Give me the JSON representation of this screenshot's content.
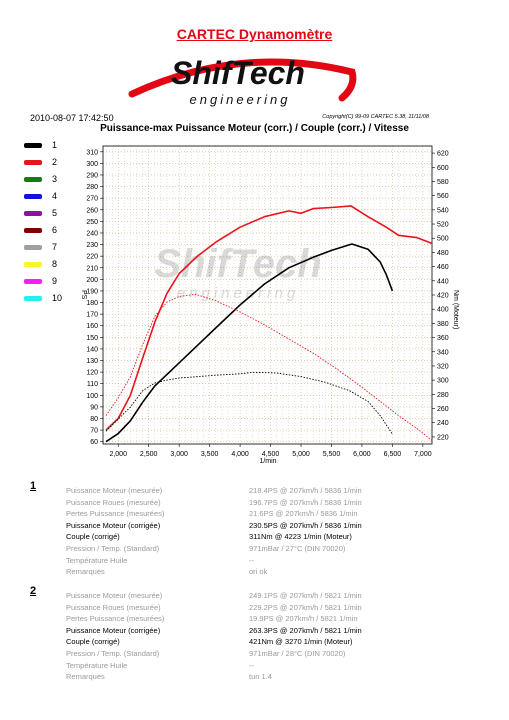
{
  "header": {
    "title": "CARTEC Dynamomètre",
    "logo_top": "ShifTech",
    "logo_bottom": "engineering",
    "datetime": "2010-08-07 17:42:50",
    "copyright": "Copyright(C) 99-09 CARTEC 5.38, 11/11/08"
  },
  "legend": {
    "items": [
      {
        "num": "1",
        "color": "#000000"
      },
      {
        "num": "2",
        "color": "#e8141c"
      },
      {
        "num": "3",
        "color": "#108010"
      },
      {
        "num": "4",
        "color": "#1010e0"
      },
      {
        "num": "5",
        "color": "#9010a0"
      },
      {
        "num": "6",
        "color": "#800000"
      },
      {
        "num": "7",
        "color": "#a0a0a0"
      },
      {
        "num": "8",
        "color": "#f8f820"
      },
      {
        "num": "9",
        "color": "#f020f0"
      },
      {
        "num": "10",
        "color": "#20f0f0"
      }
    ]
  },
  "chart_data": {
    "type": "line",
    "title": "Puissance-max Puissance Moteur (corr.) / Couple (corr.) / Vitesse",
    "xlabel": "1/min",
    "ylabel": "PS",
    "y2label": "Nm (Moteur)",
    "xlim": [
      1750,
      7150
    ],
    "ylim": [
      58,
      315
    ],
    "y2lim": [
      210,
      630
    ],
    "x_ticks": [
      2000,
      2500,
      3000,
      3500,
      4000,
      4500,
      5000,
      5500,
      6000,
      6500,
      7000
    ],
    "x_tick_labels": [
      "2,000",
      "2,500",
      "3,000",
      "3,500",
      "4,000",
      "4,500",
      "5,000",
      "5,500",
      "6,000",
      "6,500",
      "7,000"
    ],
    "y_ticks": [
      60,
      70,
      80,
      90,
      100,
      110,
      120,
      130,
      140,
      150,
      160,
      170,
      180,
      190,
      200,
      210,
      220,
      230,
      240,
      250,
      260,
      270,
      280,
      290,
      300,
      310
    ],
    "y2_ticks": [
      220,
      240,
      260,
      280,
      300,
      320,
      340,
      360,
      380,
      400,
      420,
      440,
      460,
      480,
      500,
      520,
      540,
      560,
      580,
      600,
      620
    ],
    "grid": true,
    "series": [
      {
        "name": "1",
        "kind": "power",
        "axis": "left",
        "color": "#000000",
        "x": [
          1800,
          2000,
          2200,
          2400,
          2600,
          2800,
          3000,
          3300,
          3600,
          4000,
          4400,
          4800,
          5200,
          5500,
          5836,
          6100,
          6300,
          6400,
          6500
        ],
        "y": [
          60,
          67,
          78,
          94,
          108,
          118,
          128,
          143,
          158,
          178,
          196,
          210,
          219,
          225,
          230.5,
          226,
          215,
          204,
          190
        ]
      },
      {
        "name": "2",
        "kind": "power",
        "axis": "left",
        "color": "#e8141c",
        "x": [
          1800,
          2000,
          2200,
          2400,
          2600,
          2800,
          3000,
          3300,
          3600,
          4000,
          4400,
          4800,
          5000,
          5200,
          5500,
          5821,
          6100,
          6400,
          6600,
          6900,
          7150
        ],
        "y": [
          70,
          80,
          100,
          132,
          163,
          188,
          205,
          220,
          232,
          245,
          254,
          259,
          257,
          261,
          262,
          263.3,
          254,
          245,
          238,
          236,
          231
        ]
      },
      {
        "name": "1",
        "kind": "torque",
        "axis": "right",
        "color": "#000000",
        "dashed": true,
        "x": [
          1800,
          2000,
          2200,
          2400,
          2600,
          2800,
          3000,
          3300,
          3600,
          4000,
          4223,
          4600,
          5000,
          5400,
          5800,
          6100,
          6300,
          6500
        ],
        "y": [
          228,
          245,
          262,
          285,
          296,
          300,
          303,
          305,
          307,
          309,
          311,
          310,
          305,
          297,
          285,
          270,
          250,
          224
        ]
      },
      {
        "name": "2",
        "kind": "torque",
        "axis": "right",
        "color": "#e8141c",
        "dashed": true,
        "x": [
          1800,
          2000,
          2200,
          2400,
          2600,
          2800,
          3000,
          3270,
          3600,
          4000,
          4400,
          4800,
          5200,
          5600,
          6000,
          6300,
          6600,
          6900,
          7150
        ],
        "y": [
          250,
          275,
          305,
          350,
          390,
          410,
          418,
          421,
          412,
          396,
          378,
          358,
          338,
          315,
          290,
          270,
          250,
          232,
          215
        ]
      }
    ]
  },
  "runs": [
    {
      "num": "1",
      "rows": [
        {
          "label": "Puissance Moteur (mesurée)",
          "value": "218.4PS @ 207km/h / 5836 1/min",
          "highlight": false
        },
        {
          "label": "Puissance Roues (mesurée)",
          "value": "196.7PS @ 207km/h / 5836 1/min",
          "highlight": false
        },
        {
          "label": "Pertes Puissance (mesurées)",
          "value": "21.6PS @ 207km/h / 5836 1/min",
          "highlight": false
        },
        {
          "label": "Puissance Moteur (corrigée)",
          "value": "230.5PS @ 207km/h / 5836 1/min",
          "highlight": true
        },
        {
          "label": "Couple (corrigé)",
          "value": "311Nm @ 4223 1/min (Moteur)",
          "highlight": true
        },
        {
          "label": "Pression / Temp. (Standard)",
          "value": "971mBar / 27°C   (DIN 70020)",
          "highlight": false
        },
        {
          "label": "Température Huile",
          "value": "--",
          "highlight": false
        },
        {
          "label": "Remarques",
          "value": "ori ok",
          "highlight": false
        }
      ]
    },
    {
      "num": "2",
      "rows": [
        {
          "label": "Puissance Moteur (mesurée)",
          "value": "249.1PS @ 207km/h / 5821 1/min",
          "highlight": false
        },
        {
          "label": "Puissance Roues (mesurée)",
          "value": "229.2PS @ 207km/h / 5821 1/min",
          "highlight": false
        },
        {
          "label": "Pertes Puissance (mesurées)",
          "value": "19.9PS @ 207km/h / 5821 1/min",
          "highlight": false
        },
        {
          "label": "Puissance Moteur (corrigée)",
          "value": "263.3PS @ 207km/h / 5821 1/min",
          "highlight": true
        },
        {
          "label": "Couple (corrigé)",
          "value": "421Nm @ 3270 1/min (Moteur)",
          "highlight": true
        },
        {
          "label": "Pression / Temp. (Standard)",
          "value": "971mBar / 28°C   (DIN 70020)",
          "highlight": false
        },
        {
          "label": "Température Huile",
          "value": "--",
          "highlight": false
        },
        {
          "label": "Remarques",
          "value": "tun 1.4",
          "highlight": false
        }
      ]
    }
  ]
}
